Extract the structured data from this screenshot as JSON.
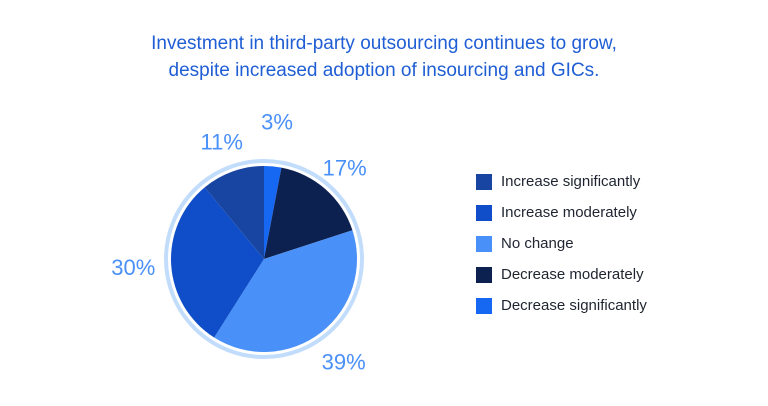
{
  "title": {
    "line1": "Investment in third-party outsourcing continues to grow,",
    "line2": "despite increased adoption of insourcing and GICs."
  },
  "chart_data": {
    "type": "pie",
    "title": "Investment in third-party outsourcing continues to grow, despite increased adoption of insourcing and GICs.",
    "slices": [
      {
        "label": "Decrease significantly",
        "value": 3,
        "display": "3%",
        "color": "#1668f2"
      },
      {
        "label": "Decrease moderately",
        "value": 17,
        "display": "17%",
        "color": "#0c2150"
      },
      {
        "label": "No change",
        "value": 39,
        "display": "39%",
        "color": "#4a90f9"
      },
      {
        "label": "Increase moderately",
        "value": 30,
        "display": "30%",
        "color": "#0f4ec8"
      },
      {
        "label": "Increase significantly",
        "value": 11,
        "display": "11%",
        "color": "#1845a2"
      }
    ],
    "legend_order": [
      "Increase significantly",
      "Increase moderately",
      "No change",
      "Decrease moderately",
      "Decrease significantly"
    ],
    "legend_position": "right",
    "ring_color": "#c2dcfb",
    "label_color": "#4a90f9"
  }
}
